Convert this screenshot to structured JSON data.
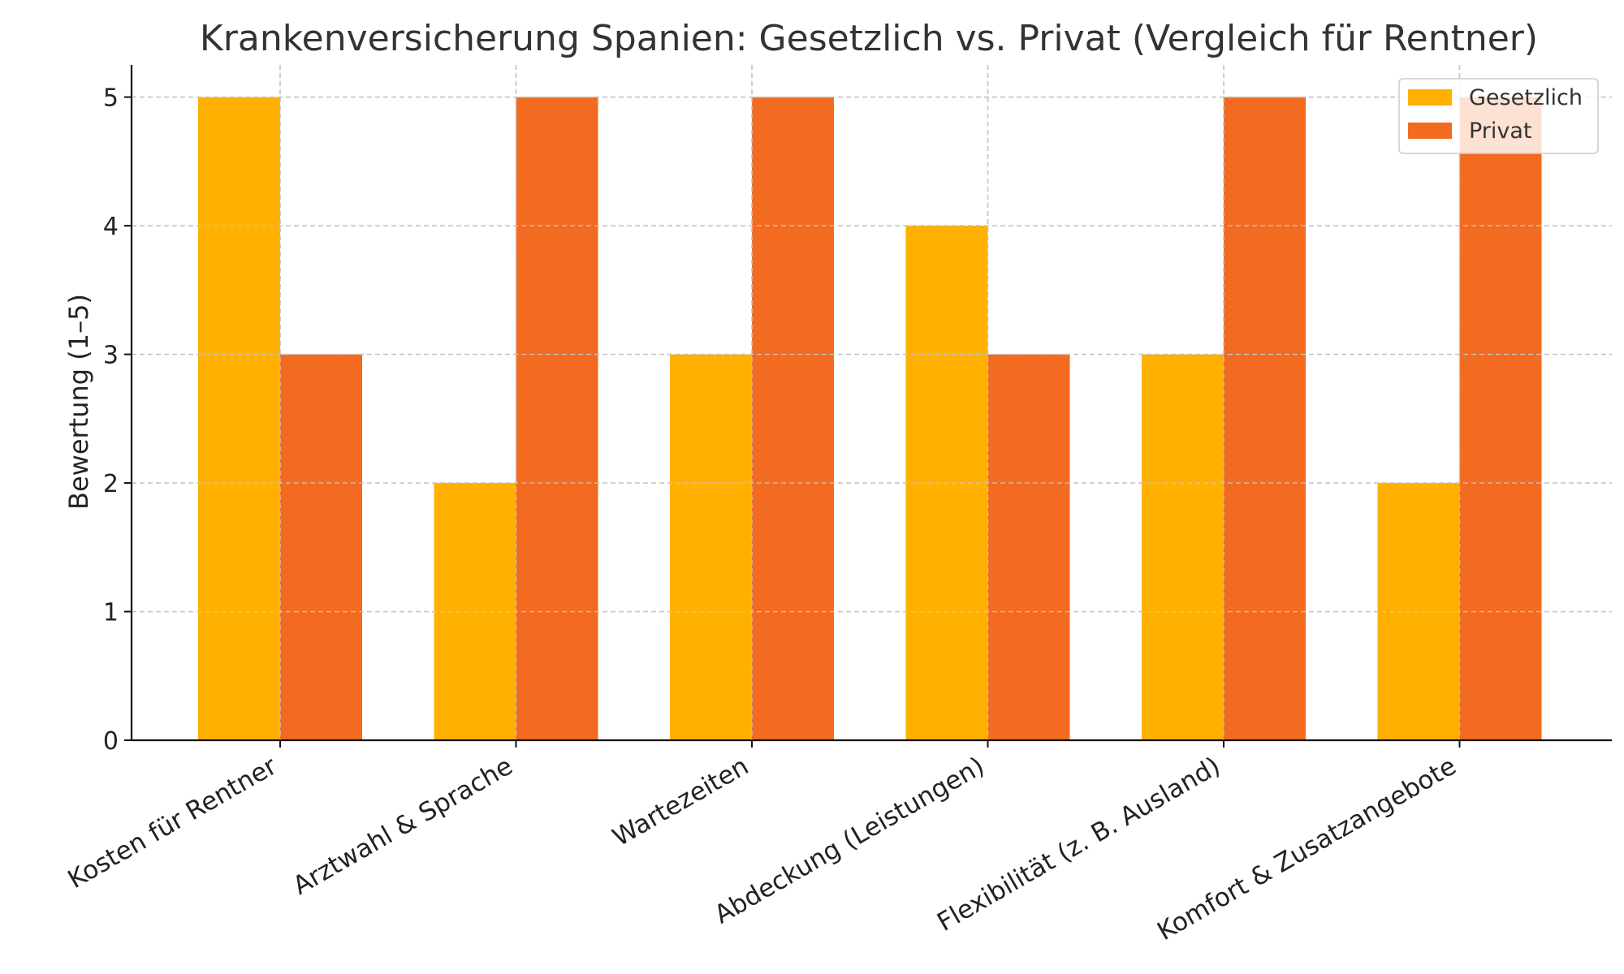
{
  "chart_data": {
    "type": "bar",
    "title": "Krankenversicherung Spanien: Gesetzlich vs. Privat (Vergleich für Rentner)",
    "xlabel": "",
    "ylabel": "Bewertung (1–5)",
    "ylim": [
      0,
      5.25
    ],
    "yticks": [
      "0",
      "1",
      "2",
      "3",
      "4",
      "5"
    ],
    "categories": [
      "Kosten für Rentner",
      "Arztwahl & Sprache",
      "Wartezeiten",
      "Abdeckung (Leistungen)",
      "Flexibilität (z. B. Ausland)",
      "Komfort & Zusatzangebote"
    ],
    "series": [
      {
        "name": "Gesetzlich",
        "color": "#FFB000",
        "values": [
          5,
          2,
          3,
          4,
          3,
          2
        ]
      },
      {
        "name": "Privat",
        "color": "#F26B21",
        "values": [
          3,
          5,
          5,
          3,
          5,
          5
        ]
      }
    ],
    "grid": true,
    "legend_position": "top-right"
  }
}
